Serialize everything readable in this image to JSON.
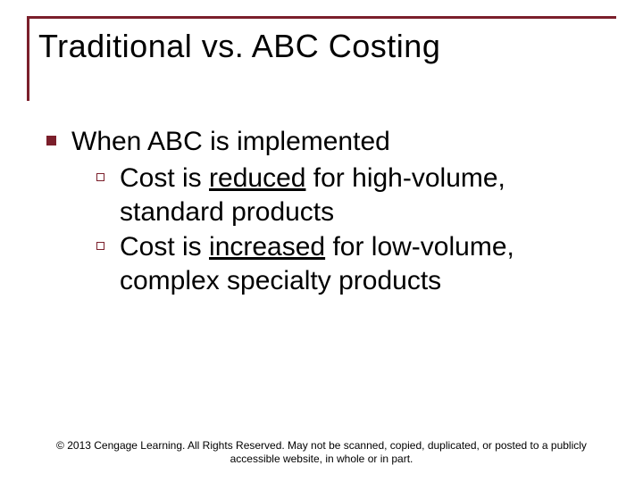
{
  "slide": {
    "title": "Traditional vs. ABC Costing",
    "bullets": {
      "l1": "When ABC is implemented",
      "l2": [
        {
          "pre": "Cost is ",
          "u": "reduced",
          "post": " for high-volume, standard products"
        },
        {
          "pre": "Cost is ",
          "u": "increased",
          "post": " for low-volume, complex specialty products"
        }
      ]
    },
    "footer": {
      "line1": "© 2013 Cengage Learning.  All Rights Reserved.  May not be scanned, copied, duplicated, or posted to a publicly",
      "line2": "accessible website, in whole or in part."
    },
    "colors": {
      "accent": "#7b1f2b",
      "text": "#000000",
      "background": "#ffffff"
    },
    "typography": {
      "title_fontsize": 36,
      "body_fontsize": 30,
      "footer_fontsize": 12,
      "font_family": "Arial"
    }
  }
}
